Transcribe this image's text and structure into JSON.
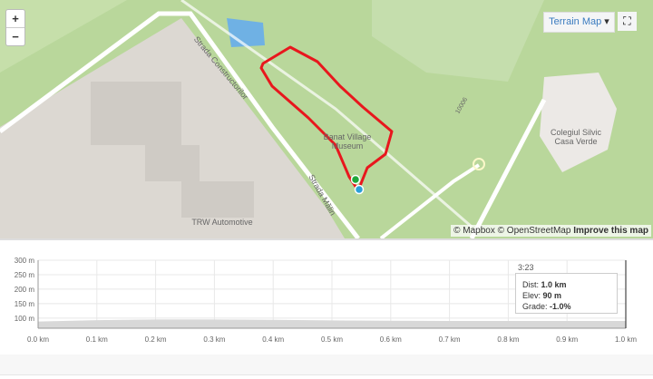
{
  "map": {
    "zoom_in": "+",
    "zoom_out": "−",
    "layer_button": "Terrain Map",
    "layer_caret": "▾",
    "fullscreen_icon": "⛶",
    "labels": {
      "museum": "Banat Village Museum",
      "college_line1": "Colegiul Silvic",
      "college_line2": "Casa Verde",
      "company": "TRW Automotive",
      "street1": "Strada Constructorilor",
      "street2": "Strada Mălin",
      "path": "10006"
    },
    "attribution": {
      "mapbox": "© Mapbox",
      "osm": "© OpenStreetMap",
      "improve": "Improve this map"
    },
    "route_color": "#e8171d",
    "start_color": "#1fa83a",
    "end_color": "#2b9fd8"
  },
  "chart_data": {
    "type": "area",
    "x": [
      0.0,
      0.1,
      0.2,
      0.3,
      0.4,
      0.5,
      0.6,
      0.7,
      0.8,
      0.9,
      1.0
    ],
    "values": [
      88,
      93,
      95,
      95,
      94,
      92,
      91,
      90,
      90,
      90,
      90
    ],
    "x_ticks": [
      "0.0 km",
      "0.1 km",
      "0.2 km",
      "0.3 km",
      "0.4 km",
      "0.5 km",
      "0.6 km",
      "0.7 km",
      "0.8 km",
      "0.9 km",
      "1.0 km"
    ],
    "y_ticks": [
      "100 m",
      "150 m",
      "200 m",
      "250 m",
      "300 m"
    ],
    "ylim": [
      65,
      300
    ],
    "xlim": [
      0,
      1.0
    ],
    "grid": true,
    "fill_color": "#d8d8d8",
    "tooltip": {
      "time": "3:23",
      "dist_label": "Dist:",
      "dist": "1.0 km",
      "elev_label": "Elev:",
      "elev": "90 m",
      "grade_label": "Grade:",
      "grade": "-1.0%"
    }
  }
}
